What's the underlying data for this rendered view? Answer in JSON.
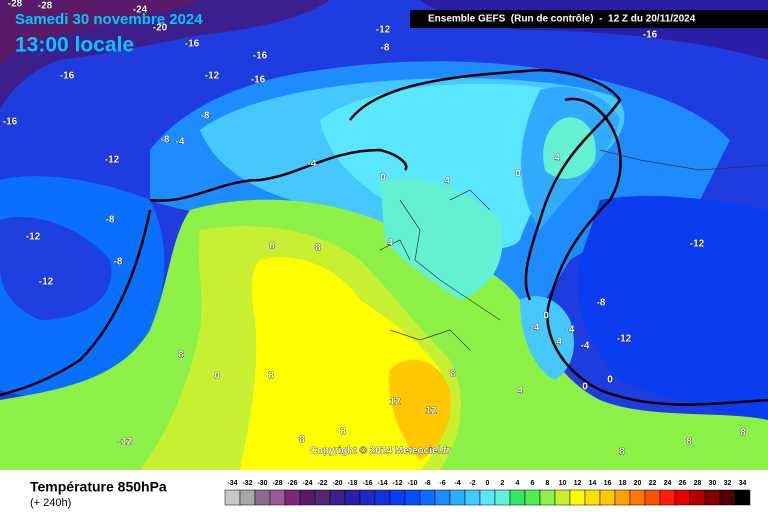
{
  "header": {
    "date": "Samedi 30 novembre 2024",
    "time": "13:00 locale",
    "model": "Ensemble GEFS  (Run de contrôle)  -  12 Z du 20/11/2024"
  },
  "map": {
    "copyright": "Copyright © 2024 Meteociel.fr",
    "contour_labels": [
      "-28",
      "-28",
      "-24",
      "-20",
      "-16",
      "-12",
      "-8",
      "-16",
      "-16",
      "-12",
      "-16",
      "-16",
      "-16",
      "-8",
      "-8",
      "-4",
      "-12",
      "-4",
      "0",
      "4",
      "0",
      "4",
      "-8",
      "-12",
      "-8",
      "-12",
      "8",
      "8",
      "4",
      "-12",
      "0",
      "-4",
      "-4",
      "-8",
      "-12",
      "-4",
      "4",
      "8",
      "0",
      "8",
      "8",
      "12",
      "12",
      "4",
      "0",
      "0",
      "-12",
      "8",
      "8",
      "8",
      "8",
      "8"
    ]
  },
  "footer": {
    "title": "Température 850hPa",
    "lead": "(+ 240h)"
  },
  "scale": {
    "ticks": [
      -34,
      -32,
      -30,
      -28,
      -26,
      -24,
      -22,
      -20,
      -18,
      -16,
      -14,
      -12,
      -10,
      -8,
      -6,
      -4,
      -2,
      0,
      2,
      4,
      6,
      8,
      10,
      12,
      14,
      16,
      18,
      20,
      22,
      24,
      26,
      28,
      30,
      32,
      34
    ],
    "colors": [
      "#c8c8c8",
      "#a8a8a8",
      "#8c6c8c",
      "#9c5a9c",
      "#7a2a7a",
      "#5a1a6a",
      "#502870",
      "#3c1e8c",
      "#2a1ea8",
      "#1e28c8",
      "#1432dc",
      "#0a3cf0",
      "#0050ff",
      "#0a6eff",
      "#1e8cff",
      "#32aaff",
      "#46c8ff",
      "#5ae6ff",
      "#64f0d2",
      "#32e664",
      "#50f050",
      "#8cf046",
      "#c8f032",
      "#ffff00",
      "#ffe100",
      "#ffc800",
      "#ffa000",
      "#ff7800",
      "#ff5000",
      "#ff1e00",
      "#e60000",
      "#b40000",
      "#820000",
      "#500000",
      "#000000"
    ]
  }
}
